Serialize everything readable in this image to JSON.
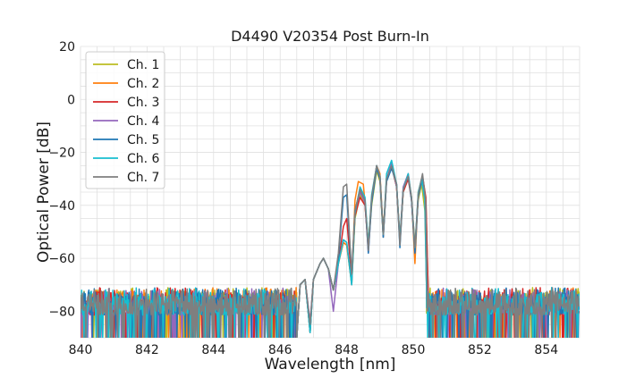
{
  "chart_data": {
    "type": "line",
    "title": "D4490 V20354 Post Burn-In",
    "xlabel": "Wavelength [nm]",
    "ylabel": "Optical Power [dB]",
    "xlim": [
      840,
      855
    ],
    "ylim": [
      -90,
      20
    ],
    "xticks": [
      840,
      842,
      844,
      846,
      848,
      850,
      852,
      854
    ],
    "yticks": [
      20,
      0,
      -20,
      -40,
      -60,
      -80
    ],
    "xtick_labels": [
      "840",
      "842",
      "844",
      "846",
      "848",
      "850",
      "852",
      "854"
    ],
    "ytick_labels": [
      "20",
      "0",
      "−20",
      "−40",
      "−60",
      "−80"
    ],
    "grid": true,
    "legend_position": "top-left",
    "noise_floor_range": [
      -90,
      -71
    ],
    "series": [
      {
        "name": "Ch. 1",
        "color": "#bcbd22",
        "noise_end": 846.5,
        "noise_start": 850.4,
        "points": [
          [
            846.5,
            -90
          ],
          [
            846.6,
            -70
          ],
          [
            846.75,
            -68
          ],
          [
            846.9,
            -88
          ],
          [
            847.0,
            -68
          ],
          [
            847.2,
            -62
          ],
          [
            847.3,
            -60
          ],
          [
            847.45,
            -64
          ],
          [
            847.6,
            -72
          ],
          [
            847.75,
            -62
          ],
          [
            847.9,
            -54
          ],
          [
            848.0,
            -55
          ],
          [
            848.15,
            -70
          ],
          [
            848.25,
            -45
          ],
          [
            848.4,
            -36
          ],
          [
            848.55,
            -40
          ],
          [
            848.65,
            -56
          ],
          [
            848.75,
            -40
          ],
          [
            848.9,
            -27
          ],
          [
            849.0,
            -31
          ],
          [
            849.1,
            -52
          ],
          [
            849.2,
            -30
          ],
          [
            849.35,
            -25
          ],
          [
            849.5,
            -33
          ],
          [
            849.6,
            -53
          ],
          [
            849.7,
            -35
          ],
          [
            849.85,
            -29
          ],
          [
            849.95,
            -38
          ],
          [
            850.05,
            -55
          ],
          [
            850.15,
            -38
          ],
          [
            850.25,
            -32
          ],
          [
            850.35,
            -42
          ],
          [
            850.4,
            -72
          ]
        ]
      },
      {
        "name": "Ch. 2",
        "color": "#ff7f0e",
        "noise_end": 846.5,
        "noise_start": 850.45,
        "points": [
          [
            846.5,
            -90
          ],
          [
            846.6,
            -70
          ],
          [
            846.75,
            -68
          ],
          [
            846.9,
            -85
          ],
          [
            847.0,
            -68
          ],
          [
            847.2,
            -62
          ],
          [
            847.3,
            -60
          ],
          [
            847.45,
            -64
          ],
          [
            847.6,
            -72
          ],
          [
            847.75,
            -62
          ],
          [
            847.9,
            -54
          ],
          [
            848.0,
            -55
          ],
          [
            848.15,
            -69
          ],
          [
            848.25,
            -38
          ],
          [
            848.35,
            -31
          ],
          [
            848.5,
            -32
          ],
          [
            848.65,
            -54
          ],
          [
            848.75,
            -38
          ],
          [
            848.9,
            -25
          ],
          [
            849.0,
            -28
          ],
          [
            849.1,
            -50
          ],
          [
            849.2,
            -30
          ],
          [
            849.35,
            -25
          ],
          [
            849.5,
            -33
          ],
          [
            849.6,
            -52
          ],
          [
            849.7,
            -34
          ],
          [
            849.85,
            -29
          ],
          [
            849.95,
            -37
          ],
          [
            850.05,
            -62
          ],
          [
            850.15,
            -35
          ],
          [
            850.28,
            -29
          ],
          [
            850.38,
            -38
          ],
          [
            850.45,
            -72
          ]
        ]
      },
      {
        "name": "Ch. 3",
        "color": "#d62728",
        "noise_end": 846.5,
        "noise_start": 850.45,
        "points": [
          [
            846.5,
            -90
          ],
          [
            846.6,
            -70
          ],
          [
            846.75,
            -68
          ],
          [
            846.9,
            -88
          ],
          [
            847.0,
            -68
          ],
          [
            847.2,
            -62
          ],
          [
            847.3,
            -60
          ],
          [
            847.45,
            -64
          ],
          [
            847.6,
            -72
          ],
          [
            847.75,
            -62
          ],
          [
            847.9,
            -48
          ],
          [
            848.0,
            -45
          ],
          [
            848.15,
            -68
          ],
          [
            848.25,
            -44
          ],
          [
            848.4,
            -37
          ],
          [
            848.55,
            -40
          ],
          [
            848.65,
            -56
          ],
          [
            848.75,
            -38
          ],
          [
            848.9,
            -26
          ],
          [
            849.0,
            -30
          ],
          [
            849.1,
            -51
          ],
          [
            849.2,
            -30
          ],
          [
            849.35,
            -25
          ],
          [
            849.5,
            -33
          ],
          [
            849.6,
            -53
          ],
          [
            849.7,
            -35
          ],
          [
            849.85,
            -30
          ],
          [
            849.95,
            -38
          ],
          [
            850.05,
            -58
          ],
          [
            850.15,
            -36
          ],
          [
            850.28,
            -29
          ],
          [
            850.38,
            -37
          ],
          [
            850.45,
            -72
          ]
        ]
      },
      {
        "name": "Ch. 4",
        "color": "#9467bd",
        "noise_end": 846.5,
        "noise_start": 850.4,
        "points": [
          [
            846.5,
            -90
          ],
          [
            846.6,
            -70
          ],
          [
            846.75,
            -68
          ],
          [
            846.9,
            -84
          ],
          [
            847.0,
            -68
          ],
          [
            847.2,
            -62
          ],
          [
            847.3,
            -60
          ],
          [
            847.45,
            -64
          ],
          [
            847.6,
            -80
          ],
          [
            847.75,
            -62
          ],
          [
            847.9,
            -53
          ],
          [
            848.0,
            -54
          ],
          [
            848.15,
            -70
          ],
          [
            848.25,
            -42
          ],
          [
            848.4,
            -35
          ],
          [
            848.55,
            -39
          ],
          [
            848.65,
            -58
          ],
          [
            848.75,
            -38
          ],
          [
            848.9,
            -25
          ],
          [
            849.0,
            -29
          ],
          [
            849.1,
            -52
          ],
          [
            849.2,
            -30
          ],
          [
            849.35,
            -24
          ],
          [
            849.5,
            -33
          ],
          [
            849.6,
            -53
          ],
          [
            849.7,
            -33
          ],
          [
            849.85,
            -28
          ],
          [
            849.95,
            -38
          ],
          [
            850.05,
            -57
          ],
          [
            850.15,
            -36
          ],
          [
            850.25,
            -30
          ],
          [
            850.35,
            -38
          ],
          [
            850.4,
            -72
          ]
        ]
      },
      {
        "name": "Ch. 5",
        "color": "#1f77b4",
        "noise_end": 846.5,
        "noise_start": 850.42,
        "points": [
          [
            846.5,
            -90
          ],
          [
            846.6,
            -70
          ],
          [
            846.75,
            -68
          ],
          [
            846.9,
            -88
          ],
          [
            847.0,
            -68
          ],
          [
            847.2,
            -62
          ],
          [
            847.3,
            -60
          ],
          [
            847.45,
            -64
          ],
          [
            847.6,
            -72
          ],
          [
            847.75,
            -60
          ],
          [
            847.9,
            -37
          ],
          [
            848.0,
            -36
          ],
          [
            848.15,
            -66
          ],
          [
            848.25,
            -42
          ],
          [
            848.4,
            -34
          ],
          [
            848.55,
            -38
          ],
          [
            848.65,
            -58
          ],
          [
            848.75,
            -39
          ],
          [
            848.9,
            -26
          ],
          [
            849.0,
            -30
          ],
          [
            849.1,
            -52
          ],
          [
            849.2,
            -31
          ],
          [
            849.35,
            -26
          ],
          [
            849.5,
            -32
          ],
          [
            849.6,
            -56
          ],
          [
            849.7,
            -34
          ],
          [
            849.85,
            -29
          ],
          [
            849.95,
            -38
          ],
          [
            850.05,
            -58
          ],
          [
            850.15,
            -37
          ],
          [
            850.27,
            -30
          ],
          [
            850.37,
            -38
          ],
          [
            850.42,
            -72
          ]
        ]
      },
      {
        "name": "Ch. 6",
        "color": "#17becf",
        "noise_end": 846.5,
        "noise_start": 850.4,
        "points": [
          [
            846.5,
            -90
          ],
          [
            846.6,
            -70
          ],
          [
            846.75,
            -68
          ],
          [
            846.9,
            -88
          ],
          [
            847.0,
            -68
          ],
          [
            847.2,
            -62
          ],
          [
            847.3,
            -60
          ],
          [
            847.45,
            -64
          ],
          [
            847.6,
            -72
          ],
          [
            847.75,
            -62
          ],
          [
            847.9,
            -53
          ],
          [
            848.0,
            -54
          ],
          [
            848.15,
            -70
          ],
          [
            848.25,
            -43
          ],
          [
            848.4,
            -33
          ],
          [
            848.55,
            -37
          ],
          [
            848.65,
            -55
          ],
          [
            848.75,
            -36
          ],
          [
            848.9,
            -25
          ],
          [
            849.0,
            -29
          ],
          [
            849.1,
            -51
          ],
          [
            849.2,
            -28
          ],
          [
            849.35,
            -23
          ],
          [
            849.5,
            -32
          ],
          [
            849.6,
            -53
          ],
          [
            849.7,
            -34
          ],
          [
            849.85,
            -28
          ],
          [
            849.95,
            -37
          ],
          [
            850.05,
            -56
          ],
          [
            850.15,
            -35
          ],
          [
            850.25,
            -30
          ],
          [
            850.35,
            -38
          ],
          [
            850.4,
            -72
          ]
        ]
      },
      {
        "name": "Ch. 7",
        "color": "#7f7f7f",
        "noise_end": 846.5,
        "noise_start": 850.42,
        "points": [
          [
            846.5,
            -90
          ],
          [
            846.6,
            -70
          ],
          [
            846.75,
            -68
          ],
          [
            846.9,
            -85
          ],
          [
            847.0,
            -68
          ],
          [
            847.2,
            -62
          ],
          [
            847.3,
            -60
          ],
          [
            847.45,
            -64
          ],
          [
            847.6,
            -72
          ],
          [
            847.75,
            -58
          ],
          [
            847.9,
            -33
          ],
          [
            848.0,
            -32
          ],
          [
            848.15,
            -66
          ],
          [
            848.25,
            -42
          ],
          [
            848.4,
            -34
          ],
          [
            848.55,
            -38
          ],
          [
            848.65,
            -57
          ],
          [
            848.75,
            -37
          ],
          [
            848.9,
            -25
          ],
          [
            849.0,
            -29
          ],
          [
            849.1,
            -51
          ],
          [
            849.2,
            -30
          ],
          [
            849.35,
            -25
          ],
          [
            849.5,
            -32
          ],
          [
            849.6,
            -55
          ],
          [
            849.7,
            -34
          ],
          [
            849.85,
            -29
          ],
          [
            849.95,
            -37
          ],
          [
            850.05,
            -56
          ],
          [
            850.15,
            -36
          ],
          [
            850.28,
            -28
          ],
          [
            850.37,
            -38
          ],
          [
            850.42,
            -72
          ]
        ]
      }
    ]
  }
}
